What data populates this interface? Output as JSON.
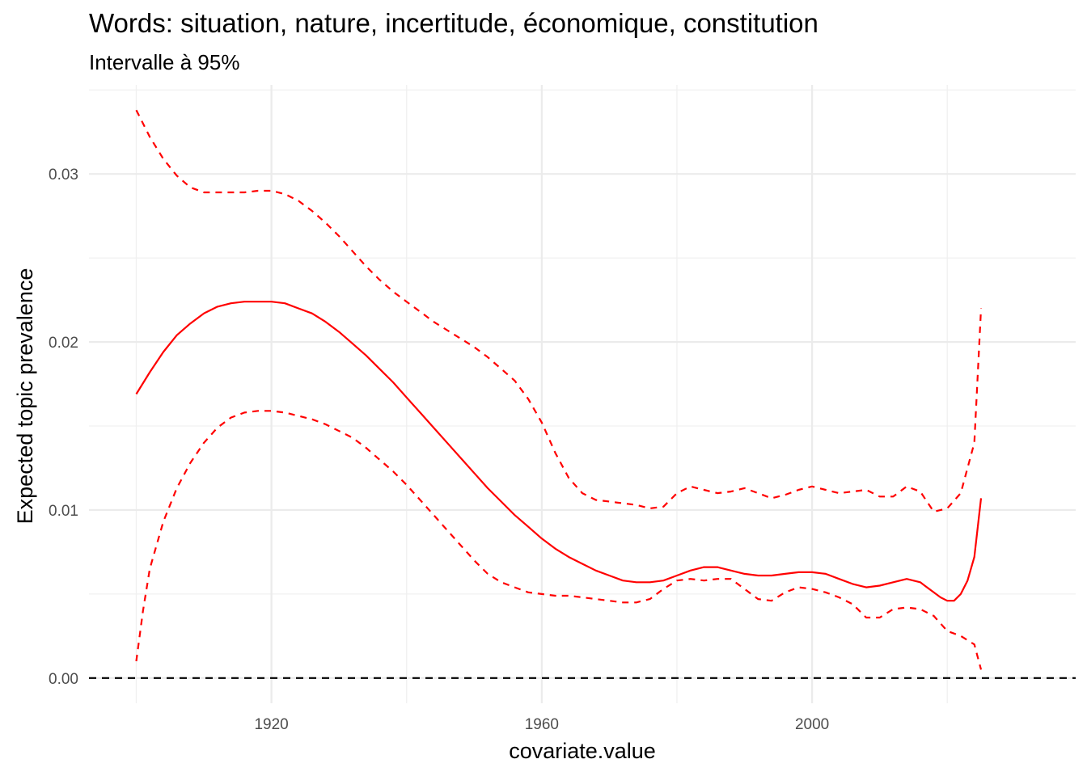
{
  "chart_data": {
    "type": "line",
    "title": "Words: situation, nature, incertitude, économique, constitution",
    "subtitle": "Intervalle à 95%",
    "xlabel": "covariate.value",
    "ylabel": "Expected topic prevalence",
    "xlim": [
      1893,
      2039
    ],
    "ylim": [
      -0.0015,
      0.0353
    ],
    "x_ticks": [
      1920,
      1960,
      2000
    ],
    "x_tick_labels": [
      "1920",
      "1960",
      "2000"
    ],
    "y_ticks": [
      0.0,
      0.01,
      0.02,
      0.03
    ],
    "y_tick_labels": [
      "0.00",
      "0.01",
      "0.02",
      "0.03"
    ],
    "grid": true,
    "reference_line": {
      "y": 0.0,
      "style": "dashed",
      "color": "#000000"
    },
    "series": [
      {
        "role": "estimate",
        "style": "solid",
        "color": "#ff0000",
        "x": [
          1900,
          1902,
          1904,
          1906,
          1908,
          1910,
          1912,
          1914,
          1916,
          1918,
          1920,
          1922,
          1924,
          1926,
          1928,
          1930,
          1932,
          1934,
          1936,
          1938,
          1940,
          1942,
          1944,
          1946,
          1948,
          1950,
          1952,
          1954,
          1956,
          1958,
          1960,
          1962,
          1964,
          1966,
          1968,
          1970,
          1972,
          1974,
          1976,
          1978,
          1980,
          1982,
          1984,
          1986,
          1988,
          1990,
          1992,
          1994,
          1996,
          1998,
          2000,
          2002,
          2004,
          2006,
          2008,
          2010,
          2012,
          2014,
          2016,
          2018,
          2019,
          2020,
          2021,
          2022,
          2023,
          2024,
          2025
        ],
        "y": [
          0.0169,
          0.0182,
          0.0194,
          0.0204,
          0.0211,
          0.0217,
          0.0221,
          0.0223,
          0.0224,
          0.0224,
          0.0224,
          0.0223,
          0.022,
          0.0217,
          0.0212,
          0.0206,
          0.0199,
          0.0192,
          0.0184,
          0.0176,
          0.0167,
          0.0158,
          0.0149,
          0.014,
          0.0131,
          0.0122,
          0.0113,
          0.0105,
          0.0097,
          0.009,
          0.0083,
          0.0077,
          0.0072,
          0.0068,
          0.0064,
          0.0061,
          0.0058,
          0.0057,
          0.0057,
          0.0058,
          0.0061,
          0.0064,
          0.0066,
          0.0066,
          0.0064,
          0.0062,
          0.0061,
          0.0061,
          0.0062,
          0.0063,
          0.0063,
          0.0062,
          0.0059,
          0.0056,
          0.0054,
          0.0055,
          0.0057,
          0.0059,
          0.0057,
          0.0051,
          0.0048,
          0.0046,
          0.0046,
          0.005,
          0.0058,
          0.0072,
          0.0107
        ]
      },
      {
        "role": "upper-95",
        "style": "dashed",
        "color": "#ff0000",
        "x": [
          1900,
          1902,
          1904,
          1906,
          1908,
          1910,
          1912,
          1914,
          1916,
          1918,
          1920,
          1922,
          1924,
          1926,
          1928,
          1930,
          1932,
          1934,
          1936,
          1938,
          1940,
          1942,
          1944,
          1946,
          1948,
          1950,
          1952,
          1954,
          1956,
          1958,
          1960,
          1962,
          1964,
          1966,
          1968,
          1970,
          1972,
          1974,
          1976,
          1978,
          1980,
          1982,
          1984,
          1986,
          1988,
          1990,
          1992,
          1994,
          1996,
          1998,
          2000,
          2002,
          2004,
          2006,
          2008,
          2010,
          2012,
          2014,
          2016,
          2018,
          2020,
          2022,
          2024,
          2025
        ],
        "y": [
          0.0338,
          0.0322,
          0.0309,
          0.0299,
          0.0292,
          0.0289,
          0.0289,
          0.0289,
          0.0289,
          0.029,
          0.029,
          0.0288,
          0.0284,
          0.0278,
          0.0271,
          0.0263,
          0.0254,
          0.0245,
          0.0237,
          0.023,
          0.0224,
          0.0218,
          0.0212,
          0.0207,
          0.0202,
          0.0197,
          0.0191,
          0.0184,
          0.0177,
          0.0166,
          0.0152,
          0.0134,
          0.0119,
          0.011,
          0.0106,
          0.0105,
          0.0104,
          0.0103,
          0.0101,
          0.0102,
          0.011,
          0.0114,
          0.0112,
          0.011,
          0.0111,
          0.0113,
          0.011,
          0.0107,
          0.0109,
          0.0112,
          0.0114,
          0.0112,
          0.011,
          0.0111,
          0.0112,
          0.0108,
          0.0108,
          0.0114,
          0.0111,
          0.0099,
          0.0101,
          0.011,
          0.014,
          0.022
        ]
      },
      {
        "role": "lower-95",
        "style": "dashed",
        "color": "#ff0000",
        "x": [
          1900,
          1901,
          1902,
          1904,
          1906,
          1908,
          1910,
          1912,
          1914,
          1916,
          1918,
          1920,
          1922,
          1924,
          1926,
          1928,
          1930,
          1932,
          1934,
          1936,
          1938,
          1940,
          1942,
          1944,
          1946,
          1948,
          1950,
          1952,
          1954,
          1956,
          1958,
          1960,
          1962,
          1964,
          1966,
          1968,
          1970,
          1972,
          1974,
          1976,
          1978,
          1980,
          1982,
          1984,
          1986,
          1988,
          1990,
          1992,
          1994,
          1996,
          1998,
          2000,
          2002,
          2004,
          2006,
          2008,
          2010,
          2012,
          2014,
          2016,
          2018,
          2020,
          2022,
          2024,
          2025
        ],
        "y": [
          0.001,
          0.004,
          0.0065,
          0.0093,
          0.0113,
          0.0128,
          0.014,
          0.0149,
          0.0155,
          0.0158,
          0.0159,
          0.0159,
          0.0158,
          0.0156,
          0.0154,
          0.0151,
          0.0147,
          0.0143,
          0.0137,
          0.013,
          0.0123,
          0.0115,
          0.0106,
          0.0097,
          0.0088,
          0.0079,
          0.007,
          0.0062,
          0.0057,
          0.0054,
          0.0051,
          0.005,
          0.0049,
          0.0049,
          0.0048,
          0.0047,
          0.0046,
          0.0045,
          0.0045,
          0.0047,
          0.0053,
          0.0058,
          0.0059,
          0.0058,
          0.0059,
          0.0059,
          0.0053,
          0.0047,
          0.0046,
          0.0051,
          0.0054,
          0.0053,
          0.0051,
          0.0048,
          0.0044,
          0.0036,
          0.0036,
          0.0041,
          0.0042,
          0.0041,
          0.0037,
          0.0028,
          0.0025,
          0.002,
          0.0005
        ]
      }
    ]
  }
}
